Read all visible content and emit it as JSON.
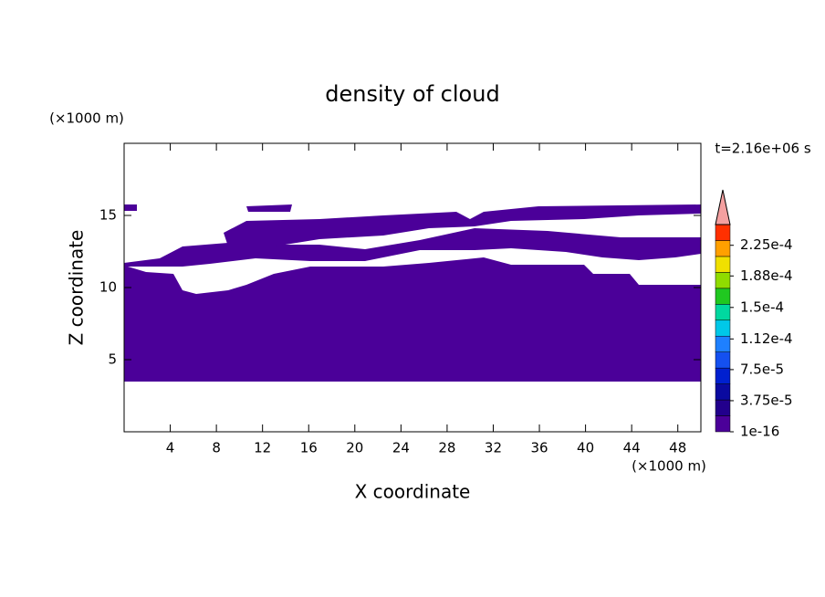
{
  "chart_data": {
    "type": "contour",
    "title": "density of cloud",
    "x_label": "X coordinate",
    "y_label": "Z coordinate",
    "x_unit": "(×1000 m)",
    "y_unit": "(×1000 m)",
    "annotation": "t=2.16e+06 s",
    "xlim": [
      0,
      50
    ],
    "xticks": [
      4,
      8,
      12,
      16,
      20,
      24,
      28,
      32,
      36,
      40,
      44,
      48
    ],
    "ylim": [
      0,
      20
    ],
    "yticks": [
      5,
      10,
      15
    ],
    "colorbar": {
      "lim": [
        0,
        0.00025
      ],
      "colors": [
        "#4b0099",
        "#22008c",
        "#0a0aa0",
        "#0020d0",
        "#1450f0",
        "#1e80ff",
        "#00c8e8",
        "#00d8a0",
        "#20c820",
        "#90dc00",
        "#f0e000",
        "#ffa000",
        "#ff3000"
      ],
      "extend_color": "#f4a0a0",
      "ticks": [
        {
          "value": 1e-16,
          "label": "1e-16"
        },
        {
          "value": 3.75e-05,
          "label": "3.75e-5"
        },
        {
          "value": 7.5e-05,
          "label": "7.5e-5"
        },
        {
          "value": 0.000112,
          "label": "1.12e-4"
        },
        {
          "value": 0.00015,
          "label": "1.5e-4"
        },
        {
          "value": 0.000188,
          "label": "1.88e-4"
        },
        {
          "value": 0.000225,
          "label": "2.25e-4"
        }
      ]
    }
  }
}
